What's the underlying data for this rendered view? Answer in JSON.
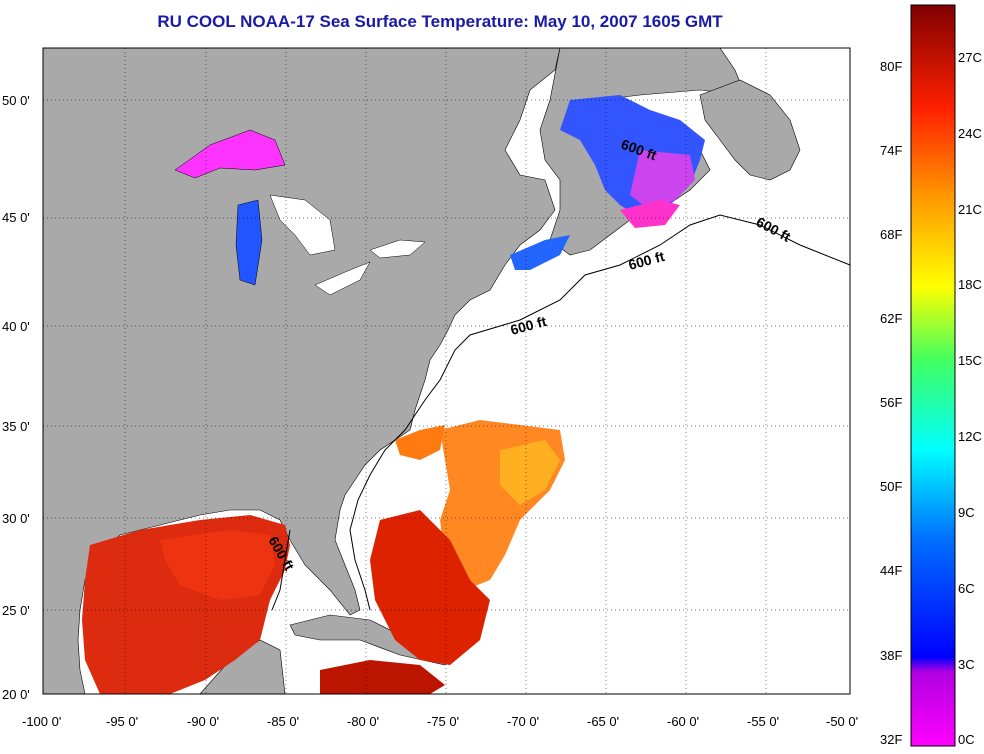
{
  "title": "RU COOL  NOAA-17  Sea Surface Temperature:  May 10, 2007 1605 GMT",
  "map": {
    "lat_labels": [
      "50 0'",
      "45 0'",
      "40 0'",
      "35 0'",
      "30 0'",
      "25 0'",
      "20 0'"
    ],
    "lon_labels": [
      "-100 0'",
      "-95 0'",
      "-90 0'",
      "-85 0'",
      "-80 0'",
      "-75 0'",
      "-70 0'",
      "-65 0'",
      "-60 0'",
      "-55 0'",
      "-50 0'"
    ],
    "contour_labels": [
      "600 ft",
      "600 ft",
      "600 ft",
      "600 ft",
      "600 ft"
    ]
  },
  "colorbar": {
    "fahrenheit": [
      "80F",
      "74F",
      "68F",
      "62F",
      "56F",
      "50F",
      "44F",
      "38F",
      "32F"
    ],
    "celsius": [
      "27C",
      "24C",
      "21C",
      "18C",
      "15C",
      "12C",
      "9C",
      "6C",
      "3C",
      "0C"
    ]
  },
  "colors": {
    "land": "#a9a9a9",
    "title": "#1a1aa8"
  }
}
